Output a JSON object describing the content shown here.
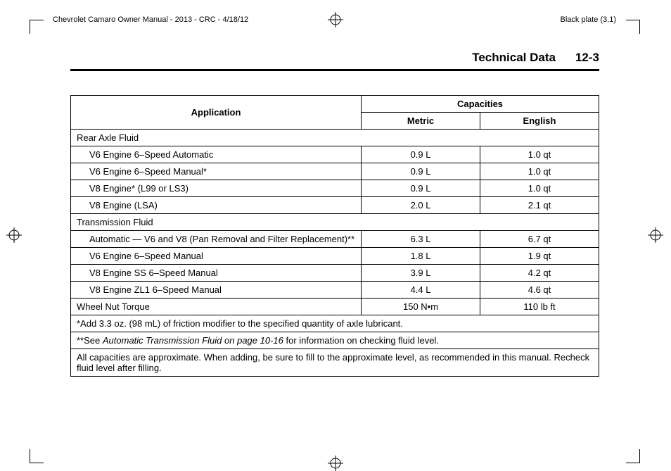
{
  "header": {
    "left": "Chevrolet Camaro Owner Manual - 2013 - CRC - 4/18/12",
    "right": "Black plate (3,1)"
  },
  "title": {
    "section": "Technical Data",
    "page": "12-3"
  },
  "table": {
    "head": {
      "application": "Application",
      "capacities": "Capacities",
      "metric": "Metric",
      "english": "English"
    },
    "rows": [
      {
        "kind": "section",
        "label": "Rear Axle Fluid"
      },
      {
        "kind": "data",
        "label": "V6 Engine 6–Speed Automatic",
        "metric": "0.9 L",
        "english": "1.0 qt"
      },
      {
        "kind": "data",
        "label": "V6 Engine 6–Speed Manual*",
        "metric": "0.9 L",
        "english": "1.0 qt"
      },
      {
        "kind": "data",
        "label": "V8 Engine* (L99 or LS3)",
        "metric": "0.9 L",
        "english": "1.0 qt"
      },
      {
        "kind": "data",
        "label": "V8 Engine (LSA)",
        "metric": "2.0 L",
        "english": "2.1 qt"
      },
      {
        "kind": "section",
        "label": "Transmission Fluid"
      },
      {
        "kind": "data",
        "label": "Automatic — V6 and V8 (Pan Removal and Filter Replacement)**",
        "metric": "6.3 L",
        "english": "6.7 qt"
      },
      {
        "kind": "data",
        "label": "V6 Engine 6–Speed Manual",
        "metric": "1.8 L",
        "english": "1.9 qt"
      },
      {
        "kind": "data",
        "label": "V8 Engine SS 6–Speed Manual",
        "metric": "3.9 L",
        "english": "4.2 qt"
      },
      {
        "kind": "data",
        "label": "V8 Engine ZL1 6–Speed Manual",
        "metric": "4.4 L",
        "english": "4.6 qt"
      },
      {
        "kind": "plain",
        "label": "Wheel Nut Torque",
        "metric": "150 N•m",
        "english": "110 lb ft"
      }
    ],
    "notes": {
      "n1": "*Add 3.3 oz. (98 mL) of friction modifier to the specified quantity of axle lubricant.",
      "n2_pre": "**See ",
      "n2_ital": "Automatic Transmission Fluid on page 10-16",
      "n2_post": " for information on checking fluid level.",
      "n3": "All capacities are approximate. When adding, be sure to fill to the approximate level, as recommended in this manual. Recheck fluid level after filling."
    }
  },
  "columns": {
    "app_width": "55%",
    "metric_width": "22.5%",
    "english_width": "22.5%"
  }
}
